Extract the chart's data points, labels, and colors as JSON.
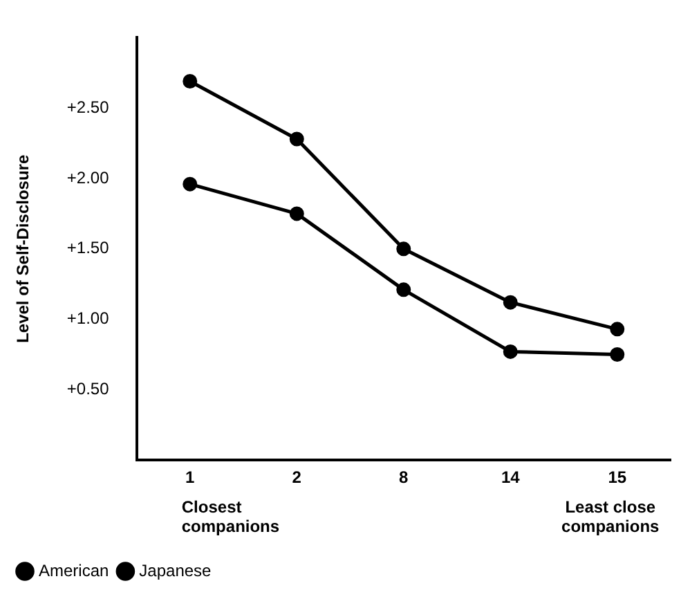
{
  "chart_data": {
    "type": "line",
    "ylabel": "Level of Self-Disclosure",
    "categories": [
      "1",
      "2",
      "8",
      "14",
      "15"
    ],
    "series": [
      {
        "name": "American",
        "color": "#000000",
        "values": [
          2.69,
          2.28,
          1.5,
          1.12,
          0.93
        ]
      },
      {
        "name": "Japanese",
        "color": "#000000",
        "values": [
          1.96,
          1.75,
          1.21,
          0.77,
          0.75
        ]
      }
    ],
    "ylim": [
      0,
      3
    ],
    "yticks": [
      {
        "value": 0.5,
        "label": "+0.50"
      },
      {
        "value": 1,
        "label": "+1.00"
      },
      {
        "value": 1.5,
        "label": "+1.50"
      },
      {
        "value": 2,
        "label": "+2.00"
      },
      {
        "value": 2.5,
        "label": "+2.50"
      }
    ],
    "annotations": [
      "Closest companions",
      "Least close companions"
    ],
    "grid": false,
    "legend": "bottom left",
    "marker": "circle",
    "line_style": "solid"
  }
}
